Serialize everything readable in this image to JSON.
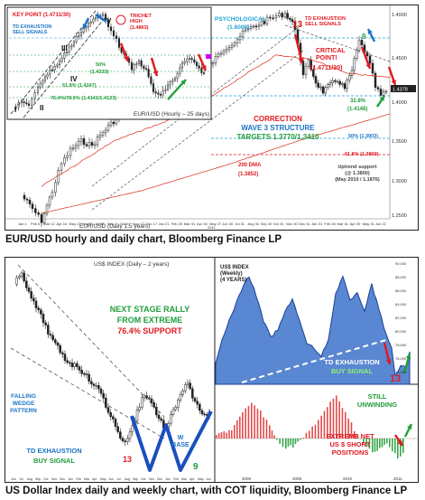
{
  "captions": {
    "top": "EUR/USD hourly and daily chart, Bloomberg Finance LP",
    "bottom": "US Dollar Index daily and weekly chart, with COT liquidity, Bloomberg Finance LP"
  },
  "colors": {
    "red": "#e0191f",
    "blue": "#1a73c7",
    "green": "#1f9d3a",
    "cyan": "#1ea3d8",
    "dark": "#111111",
    "area_fill": "#3d72c9",
    "bar_red": "#e34b4b",
    "bar_green": "#3aa64c"
  },
  "top_chart": {
    "footer_label": "EUR/USD (Daily 1.5 years)",
    "x_ticks": [
      "Jan 1",
      "Feb 5",
      "Mar 12",
      "Apr 16",
      "May 21",
      "Jun 25",
      "Jul 30",
      "Sep 3",
      "Oct 8",
      "Nov 12",
      "Dec 17",
      "Jan 21",
      "Feb 25",
      "Mar 31",
      "Apr 30",
      "May 27",
      "Jun 30",
      "Jul 31",
      "Aug 31",
      "Sep 30",
      "Oct 31",
      "Nov 30",
      "Dec 31",
      "Jan 31",
      "Feb 28",
      "Mar 31",
      "Apr 30",
      "May 31",
      "Jun 22"
    ],
    "x_year": "2011",
    "y_ticks": [
      "1.4900",
      "1.4500",
      "1.4000",
      "1.3500",
      "1.3000",
      "1.2500",
      "1.2000"
    ],
    "price_tag": "1.4378",
    "labels": {
      "psychological": "PSYCHOLOGICAL",
      "psychological_value": "(1.6000)",
      "td_exhaustion_sell": "TD EXHAUSTION\nSELL SIGNALS",
      "count_13": "13",
      "count_9": "9",
      "critical_point": "CRITICAL\nPOINT!",
      "critical_value": "(1.4711/30)",
      "fib_328": "32.8%",
      "fib_328_value": "(1.4148)",
      "correction": "CORRECTION",
      "wave3": "WAVE 3 STRUCTURE",
      "targets": "TARGETS 1.3770/1.3410",
      "fib_50": "50% (1.3903)",
      "fib_618": "61.8% (1.3869)",
      "dma_200": "200 DMA",
      "dma_200_value": "(1.3852)",
      "uptrend_support": "Uptrend support\n(@ 1.3800)\n(May 2010 / 1.1876)"
    },
    "inset": {
      "title": "EUR/USD (Hourly – 25 days)",
      "key_point": "KEY POINT (1.4711/30)",
      "td_exhaustion_sell": "TD EXHAUSTION\nSELL SIGNALS",
      "trichet_high": "TRICHET\nHIGH",
      "trichet_value": "(1.4863)",
      "wave_i": "I",
      "wave_ii": "II",
      "wave_iii": "III",
      "wave_iv": "IV",
      "wave_v": "V",
      "fib_50": "50%",
      "fib_50_value": "(1.4333)",
      "fib_618": "61.8% (1.4247)",
      "fib_764": "76.4%/78.6% (1.4141/1.4123)",
      "y_ticks": [
        "1.4800",
        "1.4600",
        "1.4400",
        "1.4200"
      ]
    }
  },
  "bottom_left": {
    "title": "US$ INDEX (Daily – 2 years)",
    "next_stage": "NEXT STAGE RALLY",
    "from_extreme": "FROM EXTREME",
    "support": "76.4% SUPPORT",
    "falling_wedge": "FALLING\nWEDGE\nPATTERN",
    "td_exhaustion": "TD EXHAUSTION",
    "buy_signal": "BUY SIGNAL",
    "count_13": "13",
    "w_base": "W\nBASE",
    "count_9": "9",
    "x_ticks": [
      "Jun",
      "Jul",
      "Aug",
      "Sep",
      "Oct",
      "Nov",
      "Dec",
      "Jan",
      "Feb",
      "Mar",
      "Apr",
      "May",
      "Jun",
      "Jul",
      "Aug",
      "Sep",
      "Oct",
      "Nov",
      "Dec",
      "Jan",
      "Feb",
      "Mar",
      "Apr",
      "May",
      "Jun"
    ]
  },
  "bottom_right_top": {
    "title": "US$ INDEX\n(Weekly)\n(4 YEARS)",
    "td_exhaustion": "TD EXHAUSTION",
    "buy_signal": "BUY SIGNAL",
    "count_13": "13",
    "y_ticks": [
      "90,000",
      "88,000",
      "86,000",
      "84,000",
      "82,000",
      "80,000",
      "78,000",
      "76,000",
      "74,000"
    ]
  },
  "bottom_right_bottom": {
    "still_unwinding": "STILL\nUNWINDING",
    "extreme_net": "EXTREME NET\nUS $ SHORT\nPOSITIONS",
    "x_years": [
      "2008",
      "2009",
      "2010",
      "2011"
    ]
  }
}
